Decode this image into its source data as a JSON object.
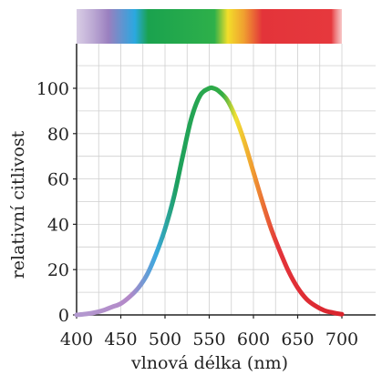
{
  "chart_data": {
    "type": "line",
    "title": "",
    "xlabel": "vlnová délka (nm)",
    "ylabel": "relativní citlivost",
    "xlim": [
      400,
      700
    ],
    "ylim": [
      0,
      100
    ],
    "xticks": [
      "400",
      "450",
      "500",
      "550",
      "600",
      "650",
      "700"
    ],
    "yticks": [
      "0",
      "20",
      "40",
      "60",
      "80",
      "100"
    ],
    "grid": true,
    "spectrum_band": true,
    "series": [
      {
        "x": [
          400,
          410,
          420,
          430,
          440,
          450,
          460,
          470,
          480,
          490,
          500,
          510,
          520,
          530,
          540,
          550,
          555,
          560,
          570,
          580,
          590,
          600,
          610,
          620,
          630,
          640,
          650,
          660,
          670,
          680,
          690,
          700
        ],
        "y": [
          0,
          0.4,
          1,
          2,
          3.5,
          5,
          8,
          12,
          18,
          27,
          38,
          52,
          70,
          87,
          97,
          100,
          100,
          99,
          95,
          87,
          76,
          63,
          50,
          38,
          28,
          19,
          12,
          7,
          4,
          2,
          1,
          0.3
        ]
      }
    ],
    "colors": {
      "violet": "#9a7fbf",
      "blue": "#2aa8e0",
      "green": "#1fa24a",
      "yellow": "#f2de2a",
      "orange": "#f0a030",
      "red": "#e3343a"
    }
  }
}
